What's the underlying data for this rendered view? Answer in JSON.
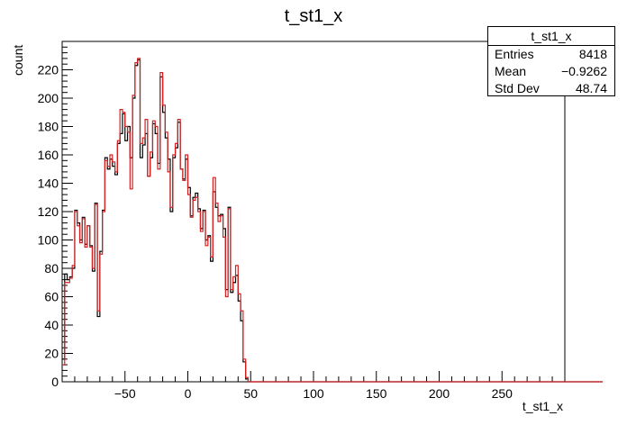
{
  "chart_data": {
    "type": "histogram",
    "title": "t_st1_x",
    "xlabel": "t_st1_x",
    "ylabel": "count",
    "xlim": [
      -100,
      300
    ],
    "ylim": [
      0,
      240
    ],
    "x_ticks": [
      -50,
      0,
      50,
      100,
      150,
      200,
      250
    ],
    "y_ticks": [
      0,
      20,
      40,
      60,
      80,
      100,
      120,
      140,
      160,
      180,
      200,
      220
    ],
    "bin_start": -100,
    "bin_width": 2,
    "series": [
      {
        "color": "#000000",
        "values": [
          16,
          76,
          72,
          74,
          80,
          121,
          112,
          100,
          116,
          97,
          110,
          96,
          78,
          126,
          46,
          92,
          121,
          158,
          150,
          157,
          152,
          146,
          168,
          175,
          189,
          170,
          180,
          158,
          200,
          223,
          227,
          158,
          167,
          175,
          145,
          158,
          182,
          175,
          154,
          215,
          190,
          172,
          157,
          120,
          158,
          165,
          183,
          150,
          143,
          157,
          137,
          117,
          130,
          133,
          122,
          108,
          121,
          100,
          103,
          85,
          134,
          123,
          117,
          118,
          108,
          65,
          123,
          63,
          70,
          75,
          57,
          43,
          14,
          2,
          0,
          0,
          0,
          0,
          0,
          0,
          0,
          0,
          0,
          0,
          0,
          0,
          0,
          0,
          0,
          0,
          0,
          0,
          0,
          0,
          0,
          0,
          0,
          0,
          0,
          0,
          0,
          0,
          0,
          0,
          0,
          0,
          0,
          0,
          0,
          0,
          0,
          0,
          0,
          0,
          0,
          0,
          0,
          0,
          0,
          0,
          0,
          0,
          0,
          0,
          0,
          0,
          0,
          0,
          0,
          0,
          0,
          0,
          0,
          0,
          0,
          0,
          0,
          0,
          0,
          0,
          0,
          0,
          0,
          0,
          0,
          0,
          0,
          0,
          0,
          0,
          0,
          0,
          0,
          0,
          0,
          0,
          0,
          0,
          0,
          0,
          0,
          0,
          0,
          0,
          0,
          0,
          0,
          0,
          0,
          0,
          0,
          0,
          0,
          0,
          0,
          0,
          0,
          0,
          0,
          0,
          0,
          0,
          0,
          0,
          0,
          0,
          0,
          0,
          0,
          0,
          0,
          0,
          0,
          0,
          0,
          0,
          0,
          0,
          0,
          0,
          0,
          0,
          0,
          0,
          0,
          0,
          0,
          0,
          0,
          0,
          0,
          0,
          0,
          0,
          0
        ]
      },
      {
        "color": "#d42020",
        "values": [
          12,
          70,
          70,
          73,
          82,
          120,
          110,
          98,
          115,
          95,
          110,
          95,
          80,
          125,
          50,
          90,
          120,
          156,
          152,
          160,
          155,
          148,
          170,
          192,
          190,
          180,
          176,
          136,
          202,
          225,
          228,
          168,
          172,
          185,
          145,
          162,
          184,
          180,
          150,
          218,
          195,
          176,
          148,
          123,
          160,
          168,
          185,
          150,
          142,
          160,
          132,
          116,
          128,
          130,
          120,
          106,
          120,
          96,
          102,
          88,
          144,
          126,
          113,
          117,
          102,
          60,
          122,
          65,
          74,
          82,
          62,
          50,
          16,
          3,
          0,
          0,
          0,
          0,
          0,
          0,
          0,
          0,
          0,
          0,
          0,
          0,
          0,
          0,
          0,
          0,
          0,
          0,
          0,
          0,
          0,
          0,
          0,
          0,
          0,
          0,
          0,
          0,
          0,
          0,
          0,
          0,
          0,
          0,
          0,
          0,
          0,
          0,
          0,
          0,
          0,
          0,
          0,
          0,
          0,
          0,
          0,
          0,
          0,
          0,
          0,
          0,
          0,
          0,
          0,
          0,
          0,
          0,
          0,
          0,
          0,
          0,
          0,
          0,
          0,
          0,
          0,
          0,
          0,
          0,
          0,
          0,
          0,
          0,
          0,
          0,
          0,
          0,
          0,
          0,
          0,
          0,
          0,
          0,
          0,
          0,
          0,
          0,
          0,
          0,
          0,
          0,
          0,
          0,
          0,
          0,
          0,
          0,
          0,
          0,
          0,
          0,
          0,
          0,
          0,
          0,
          0,
          0,
          0,
          0,
          0,
          0,
          0,
          0,
          0,
          0,
          0,
          0,
          0,
          0,
          0,
          0,
          0,
          0,
          0,
          0,
          0,
          0,
          0,
          0,
          0,
          0,
          0,
          0,
          0,
          0,
          0,
          0,
          0,
          0,
          0
        ]
      }
    ],
    "stats": {
      "title": "t_st1_x",
      "rows": [
        {
          "label": "Entries",
          "value": "8418"
        },
        {
          "label": "Mean",
          "value": "−0.9262"
        },
        {
          "label": "Std Dev",
          "value": "48.74"
        }
      ]
    }
  }
}
